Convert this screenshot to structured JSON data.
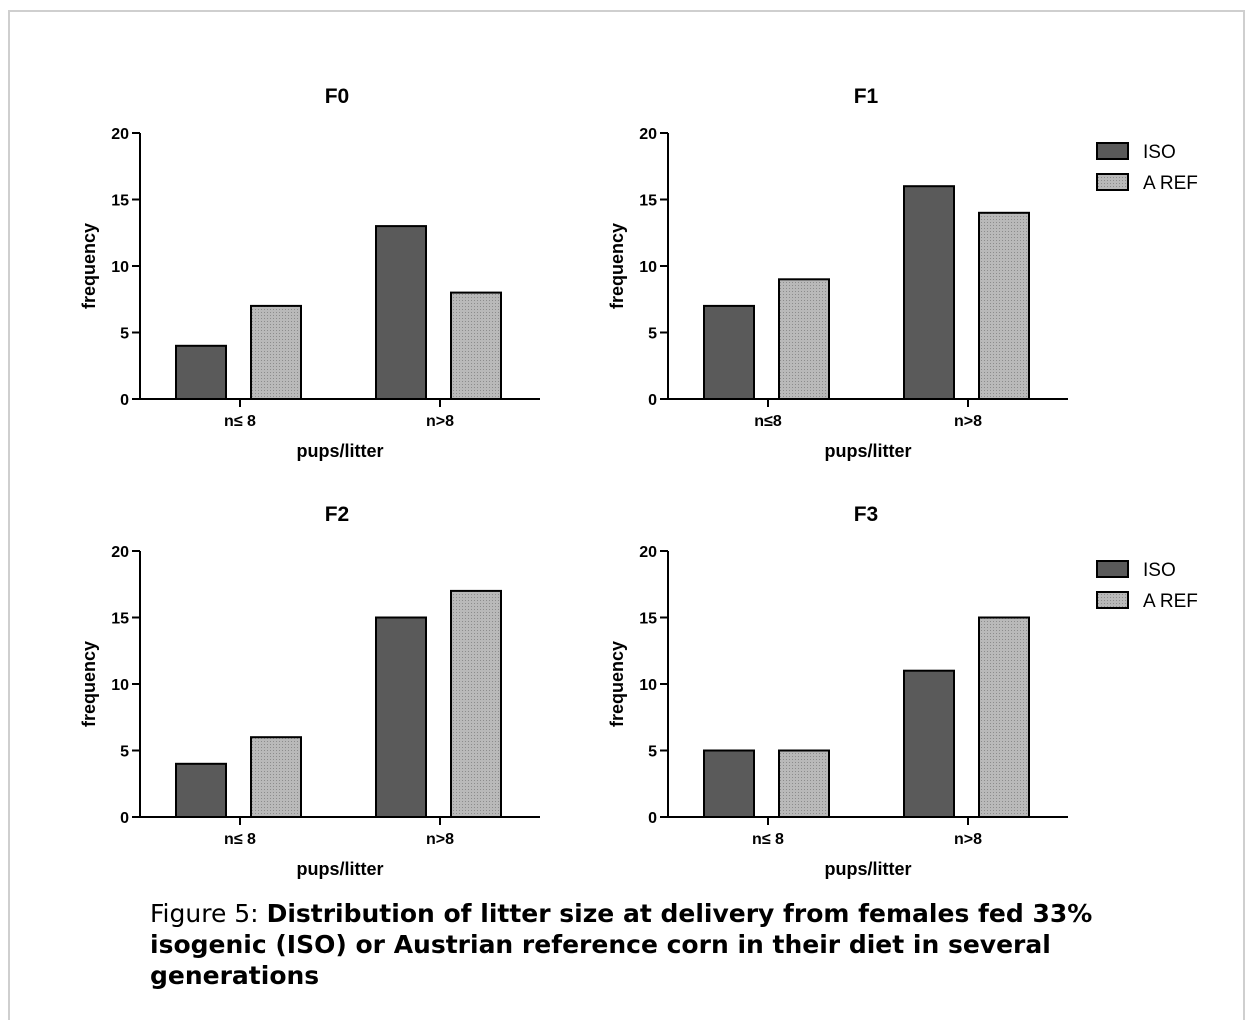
{
  "colors": {
    "iso": "#5a5a5a",
    "aref": "#a9a9a9",
    "axis": "#000000"
  },
  "legend": [
    {
      "label": "ISO",
      "color": "#5a5a5a"
    },
    {
      "label": "A REF",
      "color": "#a9a9a9"
    }
  ],
  "chart_data": [
    {
      "type": "bar",
      "title": "F0",
      "categories": [
        "n≤ 8",
        "n>8"
      ],
      "series": [
        {
          "name": "ISO",
          "values": [
            4,
            13
          ]
        },
        {
          "name": "A REF",
          "values": [
            7,
            8
          ]
        }
      ],
      "xlabel": "pups/litter",
      "ylabel": "frequency",
      "ylim": [
        0,
        20
      ],
      "yticks": [
        "0",
        "5",
        "10",
        "15",
        "20"
      ],
      "grid": false
    },
    {
      "type": "bar",
      "title": "F1",
      "categories": [
        "n≤8",
        "n>8"
      ],
      "series": [
        {
          "name": "ISO",
          "values": [
            7,
            16
          ]
        },
        {
          "name": "A REF",
          "values": [
            9,
            14
          ]
        }
      ],
      "xlabel": "pups/litter",
      "ylabel": "frequency",
      "ylim": [
        0,
        20
      ],
      "yticks": [
        "0",
        "5",
        "10",
        "15",
        "20"
      ],
      "grid": false,
      "legend": "right"
    },
    {
      "type": "bar",
      "title": "F2",
      "categories": [
        "n≤ 8",
        "n>8"
      ],
      "series": [
        {
          "name": "ISO",
          "values": [
            4,
            15
          ]
        },
        {
          "name": "A REF",
          "values": [
            6,
            17
          ]
        }
      ],
      "xlabel": "pups/litter",
      "ylabel": "frequency",
      "ylim": [
        0,
        20
      ],
      "yticks": [
        "0",
        "5",
        "10",
        "15",
        "20"
      ],
      "grid": false
    },
    {
      "type": "bar",
      "title": "F3",
      "categories": [
        "n≤ 8",
        "n>8"
      ],
      "series": [
        {
          "name": "ISO",
          "values": [
            5,
            11
          ]
        },
        {
          "name": "A REF",
          "values": [
            5,
            15
          ]
        }
      ],
      "xlabel": "pups/litter",
      "ylabel": "frequency",
      "ylim": [
        0,
        20
      ],
      "yticks": [
        "0",
        "5",
        "10",
        "15",
        "20"
      ],
      "grid": false,
      "legend": "right"
    }
  ],
  "caption": {
    "prefix": "Figure 5: ",
    "text": "Distribution of litter size at delivery from females fed 33% isogenic (ISO) or Austrian reference corn in their diet in several generations"
  }
}
